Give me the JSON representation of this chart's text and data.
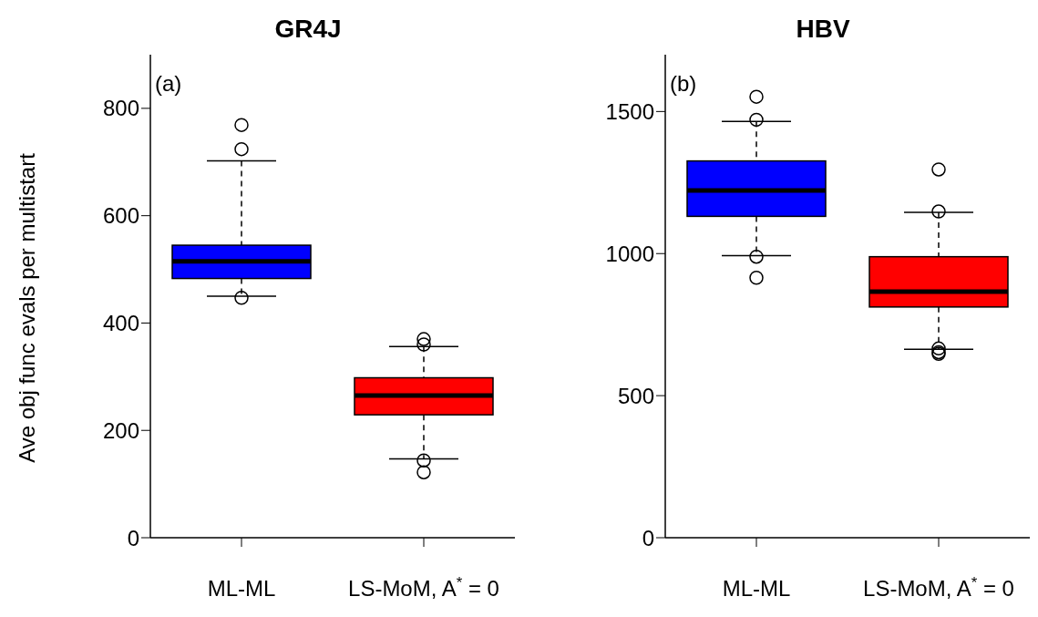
{
  "chart_data": [
    {
      "type": "box",
      "title": "GR4J",
      "ylabel": "Ave obj func evals per multistart",
      "categories": [
        "ML-ML",
        "LS-MoM, A$^{*}$ = 0"
      ],
      "colors": [
        "#0000ff",
        "#ff0000"
      ],
      "boxes": [
        {
          "low": 450,
          "q1": 483,
          "median": 515,
          "q3": 545,
          "high": 702,
          "outliers": [
            769,
            724,
            447
          ]
        },
        {
          "low": 147,
          "q1": 229,
          "median": 265,
          "q3": 298,
          "high": 356,
          "outliers": [
            370,
            360,
            144,
            122
          ]
        }
      ],
      "ylim": [
        0,
        900
      ],
      "yticks": [
        0,
        200,
        400,
        600,
        800
      ],
      "annotations": [
        "(a)"
      ]
    },
    {
      "type": "box",
      "title": "HBV",
      "categories": [
        "ML-ML",
        "LS-MoM, A$^{*}$ = 0"
      ],
      "colors": [
        "#0000ff",
        "#ff0000"
      ],
      "boxes": [
        {
          "low": 993,
          "q1": 1131,
          "median": 1222,
          "q3": 1326,
          "high": 1465,
          "outliers": [
            1552,
            1471,
            989,
            915
          ]
        },
        {
          "low": 663,
          "q1": 812,
          "median": 866,
          "q3": 989,
          "high": 1145,
          "outliers": [
            1296,
            1148,
            666,
            653,
            647
          ]
        }
      ],
      "ylim": [
        0,
        1700
      ],
      "yticks": [
        0,
        500,
        1000,
        1500
      ],
      "annotations": [
        "(b)"
      ]
    }
  ]
}
